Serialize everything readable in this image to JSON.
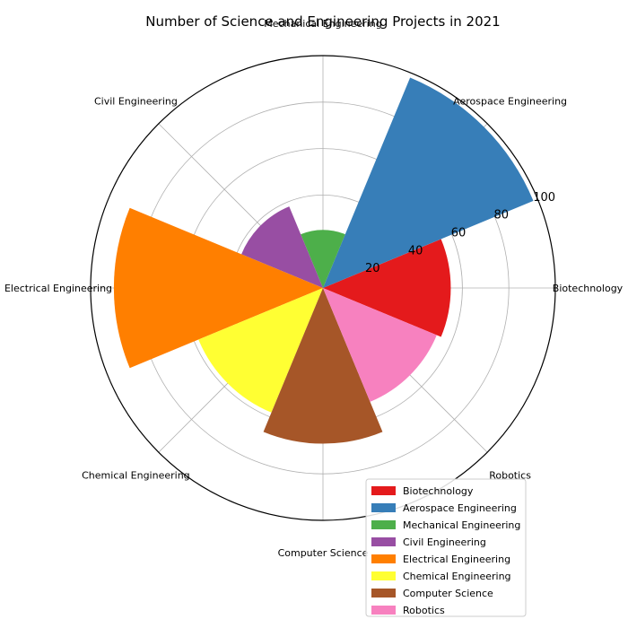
{
  "chart_data": {
    "type": "polar-bar",
    "title": "Number of Science and Engineering Projects in 2021",
    "categories": [
      "Biotechnology",
      "Aerospace Engineering",
      "Mechanical Engineering",
      "Civil Engineering",
      "Electrical Engineering",
      "Chemical Engineering",
      "Computer Science",
      "Robotics"
    ],
    "values": [
      55,
      98,
      25,
      38,
      90,
      58,
      67,
      53
    ],
    "colors": [
      "#e41a1c",
      "#377eb8",
      "#4daf4a",
      "#984ea3",
      "#ff7f00",
      "#ffff33",
      "#a65628",
      "#f781bf"
    ],
    "rlim": [
      0,
      100
    ],
    "r_ticks": [
      20,
      40,
      60,
      80,
      100
    ],
    "grid": true,
    "legend_position": "lower-right"
  }
}
